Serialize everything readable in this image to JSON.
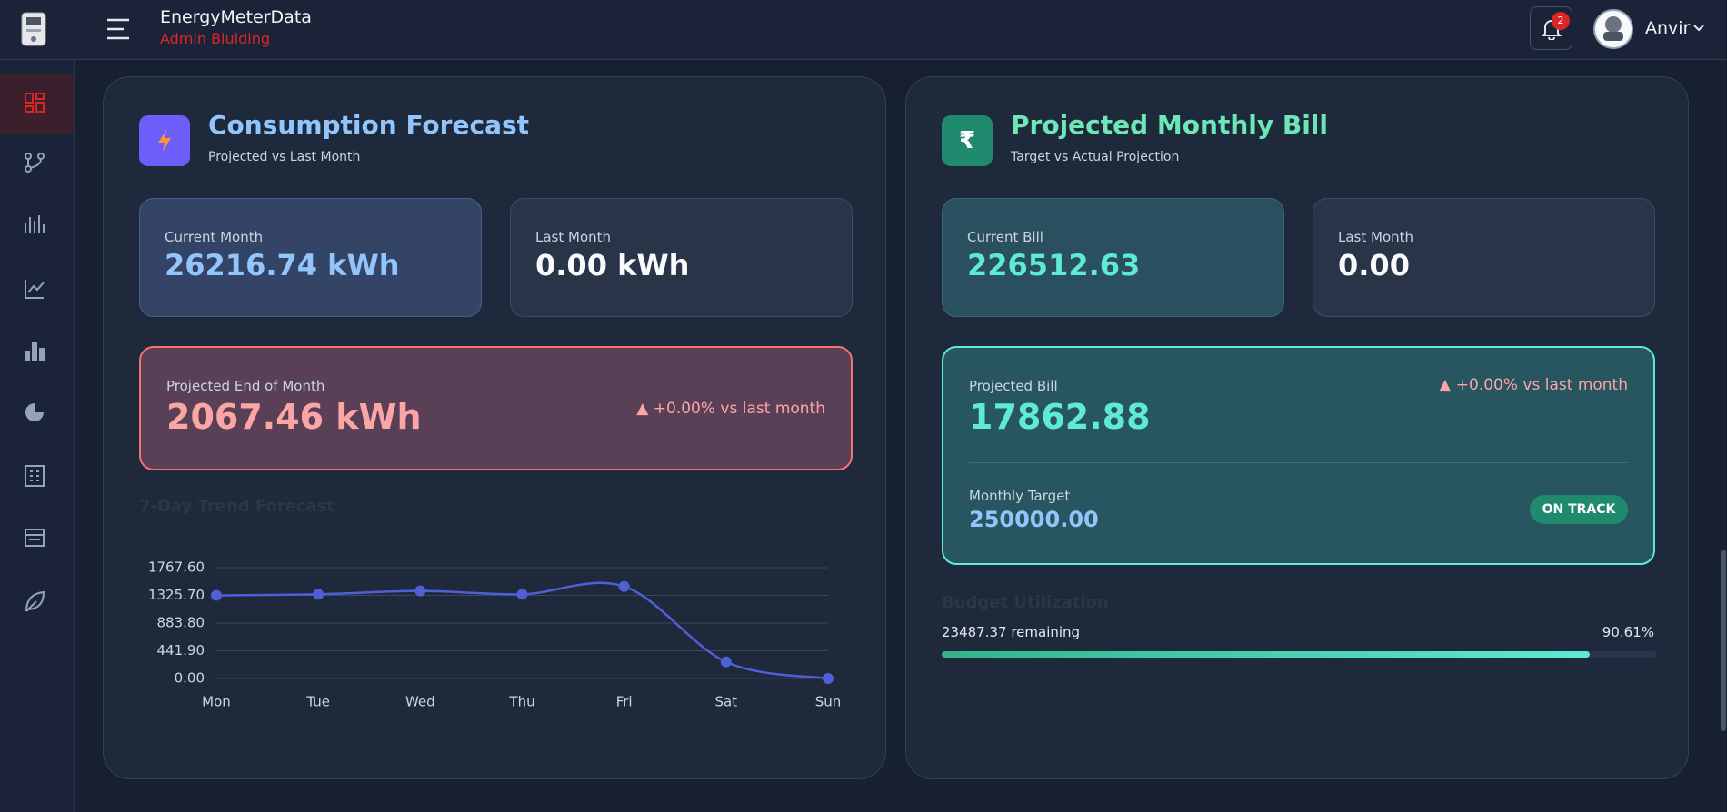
{
  "header": {
    "app_name": "EnergyMeterData",
    "building": "Admin Biulding",
    "notifications": "2",
    "user": "Anvir"
  },
  "forecast": {
    "title": "Consumption Forecast",
    "subtitle": "Projected vs Last Month",
    "current_label": "Current Month",
    "current_value": "26216.74 kWh",
    "last_label": "Last Month",
    "last_value": "0.00 kWh",
    "projected_label": "Projected End of Month",
    "projected_value": "2067.46 kWh",
    "change": "▲ +0.00% vs last month"
  },
  "bill": {
    "icon": "₹",
    "title": "Projected Monthly Bill",
    "subtitle": "Target vs Actual Projection",
    "current_label": "Current Bill",
    "current_value": "226512.63",
    "last_label": "Last Month",
    "last_value": "0.00",
    "projected_label": "Projected Bill",
    "projected_value": "17862.88",
    "change": "▲ +0.00% vs last month",
    "target_label": "Monthly Target",
    "target_value": "250000.00",
    "status": "ON TRACK",
    "budget_title": "Budget Utilization",
    "remaining": "23487.37 remaining",
    "utilization": {
      "value": 90.61,
      "label": "90.61%"
    }
  },
  "chart_data": {
    "type": "line",
    "title": "7-Day Trend Forecast",
    "categories": [
      "Mon",
      "Tue",
      "Wed",
      "Thu",
      "Fri",
      "Sat",
      "Sun"
    ],
    "values": [
      1326,
      1343,
      1396,
      1343,
      1467,
      265,
      0
    ],
    "color": "#4f5fd6",
    "ylim": [
      0,
      1767.6
    ],
    "yticks": [
      {
        "value": 0,
        "label": "0.00"
      },
      {
        "value": 441.9,
        "label": "441.90"
      },
      {
        "value": 883.8,
        "label": "883.80"
      },
      {
        "value": 1325.7,
        "label": "1325.70"
      },
      {
        "value": 1767.6,
        "label": "1767.60"
      }
    ],
    "grid": true
  }
}
